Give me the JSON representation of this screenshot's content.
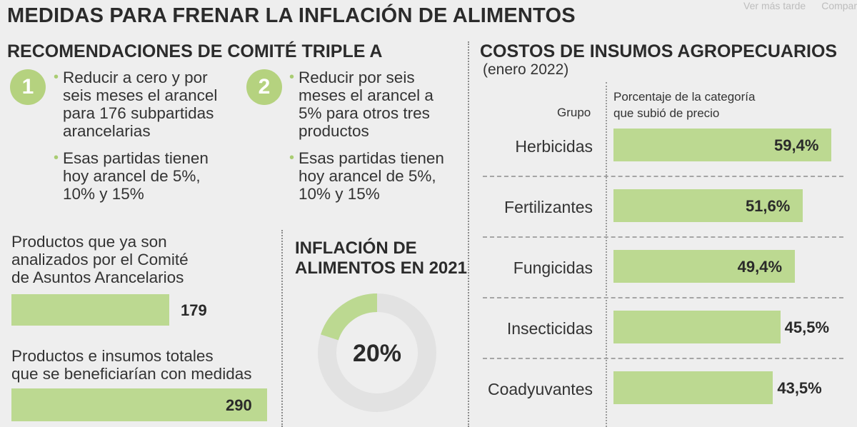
{
  "title": "MEDIDAS PARA FRENAR LA INFLACIÓN DE ALIMENTOS",
  "overlay": {
    "watch_later": "Ver más tarde",
    "share": "Compar"
  },
  "recommendations": {
    "heading": "RECOMENDACIONES DE COMITÉ TRIPLE A",
    "items": [
      {
        "number": "1",
        "lines_a": [
          "Reducir a cero y por",
          "seis meses el arancel",
          "para 176 subpartidas",
          "arancelarias"
        ],
        "lines_b": [
          "Esas partidas tienen",
          "hoy arancel de 5%,",
          "10% y 15%"
        ]
      },
      {
        "number": "2",
        "lines_a": [
          "Reducir por seis",
          "meses el arancel a",
          "5% para otros tres",
          "productos"
        ],
        "lines_b": [
          "Esas partidas tienen",
          "hoy arancel de 5%,",
          "10% y 15%"
        ]
      }
    ]
  },
  "products": {
    "analyzed": {
      "label_lines": [
        "Productos que ya son",
        "analizados por el Comité",
        "de Asuntos Arancelarios"
      ],
      "value": "179",
      "number": 179
    },
    "total": {
      "label_lines": [
        "Productos e insumos totales",
        "que se beneficiarían con medidas"
      ],
      "value": "290",
      "number": 290
    }
  },
  "inflation": {
    "heading_lines": [
      "INFLACIÓN DE",
      "ALIMENTOS EN 2021"
    ],
    "value_label": "20%",
    "fraction": 0.2,
    "colors": {
      "filled": "#bcd991",
      "empty": "#e2e2e2"
    }
  },
  "costs": {
    "heading": "COSTOS DE INSUMOS AGROPECUARIOS",
    "subheading": "(enero 2022)",
    "col_group": "Grupo",
    "col_pct_lines": [
      "Porcentaje de la categoría",
      "que subió de precio"
    ]
  },
  "chart_data": {
    "type": "bar",
    "categories": [
      "Herbicidas",
      "Fertilizantes",
      "Fungicidas",
      "Insecticidas",
      "Coadyuvantes"
    ],
    "values": [
      59.4,
      51.6,
      49.4,
      45.5,
      43.5
    ],
    "value_labels": [
      "59,4%",
      "51,6%",
      "49,4%",
      "45,5%",
      "43,5%"
    ],
    "orientation": "horizontal",
    "bar_color": "#bcd991"
  }
}
